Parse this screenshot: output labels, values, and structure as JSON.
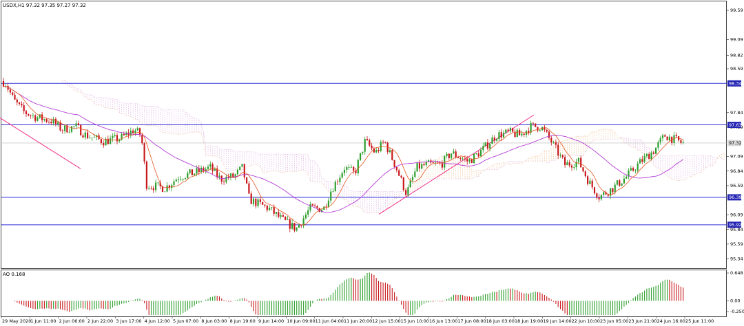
{
  "header": {
    "title": "USDX,H1  97.32 97.35 97.27 97.32"
  },
  "indicator": {
    "label": "AO 0.168"
  },
  "colors": {
    "candle_up": "#2e9f2e",
    "candle_down": "#c8171b",
    "hline": "#2b2bd9",
    "trend": "#ee2d86",
    "ma_fast": "#e5541e",
    "ma_slow": "#b43cd6",
    "cloud_a": "#f2c49a",
    "cloud_b": "#e0b3df",
    "price_tag": "#2626b5"
  },
  "chart_data": {
    "type": "candlestick",
    "symbol": "USDX",
    "timeframe": "H1",
    "ylim": [
      95.2,
      99.72
    ],
    "y_ticks": [
      "99.59",
      "99.09",
      "98.82",
      "98.59",
      "97.84",
      "97.59",
      "97.09",
      "96.84",
      "96.59",
      "96.09",
      "95.84",
      "95.59",
      "95.34"
    ],
    "x_ticks": [
      "29 May 2020",
      "1 Jun 11:00",
      "2 Jun 06:00",
      "2 Jun 22:00",
      "3 Jun 17:00",
      "4 Jun 12:00",
      "5 Jun 07:00",
      "8 Jun 03:00",
      "8 Jun 19:00",
      "9 Jun 14:00",
      "10 Jun 09:00",
      "11 Jun 04:00",
      "11 Jun 20:00",
      "12 Jun 15:00",
      "15 Jun 10:00",
      "16 Jun 13:00",
      "17 Jun 08:00",
      "18 Jun 03:00",
      "18 Jun 19:00",
      "19 Jun 14:00",
      "22 Jun 10:00",
      "23 Jun 05:00",
      "23 Jun 21:00",
      "24 Jun 16:00",
      "25 Jun 11:00"
    ],
    "current_price": {
      "value": 97.32,
      "label": "97.32"
    },
    "horizontal_levels": [
      {
        "value": 98.34,
        "label": "98.34"
      },
      {
        "value": 97.63,
        "label": "97.63"
      },
      {
        "value": 96.39,
        "label": "96.39"
      },
      {
        "value": 95.92,
        "label": "95.92"
      }
    ],
    "trend_lines": [
      {
        "from": [
          0,
          97.75
        ],
        "to": [
          117,
          96.88
        ]
      },
      {
        "from": [
          550,
          96.1
        ],
        "to": [
          775,
          97.8
        ]
      }
    ],
    "series_anchors": [
      [
        0,
        98.4
      ],
      [
        8,
        98.35
      ],
      [
        20,
        98.05
      ],
      [
        35,
        97.85
      ],
      [
        55,
        97.75
      ],
      [
        75,
        97.7
      ],
      [
        90,
        97.55
      ],
      [
        110,
        97.6
      ],
      [
        125,
        97.45
      ],
      [
        150,
        97.35
      ],
      [
        175,
        97.4
      ],
      [
        195,
        97.55
      ],
      [
        205,
        97.45
      ],
      [
        213,
        96.6
      ],
      [
        240,
        96.55
      ],
      [
        260,
        96.75
      ],
      [
        280,
        96.8
      ],
      [
        305,
        96.9
      ],
      [
        320,
        96.7
      ],
      [
        340,
        96.75
      ],
      [
        352,
        96.9
      ],
      [
        362,
        96.35
      ],
      [
        390,
        96.2
      ],
      [
        410,
        96.0
      ],
      [
        430,
        95.85
      ],
      [
        450,
        96.2
      ],
      [
        470,
        96.2
      ],
      [
        480,
        96.5
      ],
      [
        500,
        96.9
      ],
      [
        515,
        96.8
      ],
      [
        530,
        97.35
      ],
      [
        545,
        97.15
      ],
      [
        558,
        97.35
      ],
      [
        575,
        96.9
      ],
      [
        590,
        96.45
      ],
      [
        605,
        96.9
      ],
      [
        620,
        96.95
      ],
      [
        640,
        96.95
      ],
      [
        655,
        97.15
      ],
      [
        680,
        97.0
      ],
      [
        700,
        97.2
      ],
      [
        720,
        97.45
      ],
      [
        740,
        97.5
      ],
      [
        755,
        97.45
      ],
      [
        770,
        97.6
      ],
      [
        785,
        97.6
      ],
      [
        800,
        97.35
      ],
      [
        810,
        97.15
      ],
      [
        820,
        96.95
      ],
      [
        840,
        97.0
      ],
      [
        855,
        96.65
      ],
      [
        870,
        96.4
      ],
      [
        890,
        96.55
      ],
      [
        910,
        96.75
      ],
      [
        930,
        97.0
      ],
      [
        950,
        97.2
      ],
      [
        965,
        97.45
      ],
      [
        975,
        97.4
      ],
      [
        990,
        97.32
      ]
    ],
    "ao_ylim": [
      -0.33,
      0.68
    ],
    "ao_ticks": [
      "0.648",
      "0.00",
      "-0.250"
    ]
  }
}
